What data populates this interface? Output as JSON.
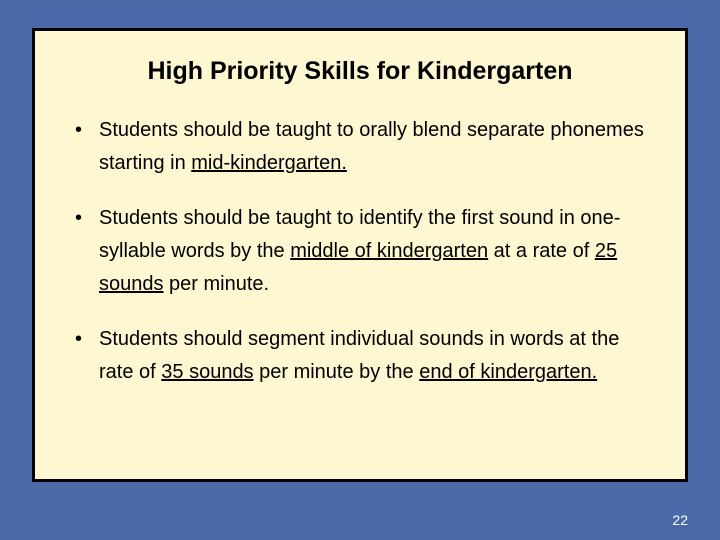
{
  "slide": {
    "title": "High Priority Skills for Kindergarten",
    "colors": {
      "background": "#4a69a8",
      "content_bg": "#fdf8d2",
      "border": "#000000",
      "text": "#000000",
      "page_number": "#ffffff"
    },
    "typography": {
      "title_fontsize": 25,
      "title_weight": "bold",
      "body_fontsize": 20,
      "page_num_fontsize": 14,
      "font_family": "Arial"
    },
    "bullets": [
      {
        "pre1": "Students should be taught to orally blend separate phonemes starting in ",
        "u1": "mid-kindergarten.",
        "post1": ""
      },
      {
        "pre1": "Students should be taught to identify the first sound in one-syllable words by the ",
        "u1": "middle of kindergarten",
        "mid1": " at a rate of ",
        "u2": "25 sounds",
        "post1": " per minute."
      },
      {
        "pre1": "Students should segment individual sounds in words at the rate of ",
        "u1": "35 sounds",
        "mid1": " per minute by the ",
        "u2": "end of kindergarten.",
        "post1": ""
      }
    ],
    "page_number": "22"
  }
}
